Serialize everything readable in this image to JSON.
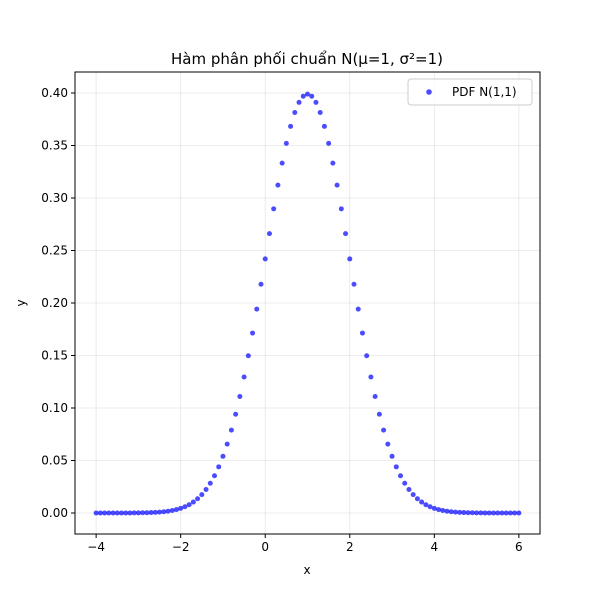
{
  "chart_data": {
    "type": "scatter",
    "title": "Hàm phân phối chuẩn N(μ=1, σ²=1)",
    "xlabel": "x",
    "ylabel": "y",
    "xlim": [
      -4.5,
      6.5
    ],
    "ylim": [
      -0.02,
      0.42
    ],
    "grid": true,
    "legend_position": "top-right",
    "x_ticks": [
      -4,
      -2,
      0,
      2,
      4,
      6
    ],
    "x_tick_labels": [
      "−4",
      "−2",
      "0",
      "2",
      "4",
      "6"
    ],
    "y_ticks": [
      0.0,
      0.05,
      0.1,
      0.15,
      0.2,
      0.25,
      0.3,
      0.35,
      0.4
    ],
    "y_tick_labels": [
      "0.00",
      "0.05",
      "0.10",
      "0.15",
      "0.20",
      "0.25",
      "0.30",
      "0.35",
      "0.40"
    ],
    "series": [
      {
        "name": "PDF N(1,1)",
        "color": "#0000ff",
        "x": [
          -4.0,
          -3.9,
          -3.8,
          -3.7,
          -3.6,
          -3.5,
          -3.4,
          -3.3,
          -3.2,
          -3.1,
          -3.0,
          -2.9,
          -2.8,
          -2.7,
          -2.6,
          -2.5,
          -2.4,
          -2.3,
          -2.2,
          -2.1,
          -2.0,
          -1.9,
          -1.8,
          -1.7,
          -1.6,
          -1.5,
          -1.4,
          -1.3,
          -1.2,
          -1.1,
          -1.0,
          -0.9,
          -0.8,
          -0.7,
          -0.6,
          -0.5,
          -0.4,
          -0.3,
          -0.2,
          -0.1,
          0.0,
          0.1,
          0.2,
          0.3,
          0.4,
          0.5,
          0.6,
          0.7,
          0.8,
          0.9,
          1.0,
          1.1,
          1.2,
          1.3,
          1.4,
          1.5,
          1.6,
          1.7,
          1.8,
          1.9,
          2.0,
          2.1,
          2.2,
          2.3,
          2.4,
          2.5,
          2.6,
          2.7,
          2.8,
          2.9,
          3.0,
          3.1,
          3.2,
          3.3,
          3.4,
          3.5,
          3.6,
          3.7,
          3.8,
          3.9,
          4.0,
          4.1,
          4.2,
          4.3,
          4.4,
          4.5,
          4.6,
          4.7,
          4.8,
          4.9,
          5.0,
          5.1,
          5.2,
          5.3,
          5.4,
          5.5,
          5.6,
          5.7,
          5.8,
          5.9,
          6.0
        ],
        "y": [
          1.5e-06,
          2.4e-06,
          3.9e-06,
          6.2e-06,
          9.7e-06,
          1.49e-05,
          2.29e-05,
          3.47e-05,
          5.2e-05,
          7.72e-05,
          0.0001338,
          0.0001987,
          0.0002919,
          0.0004247,
          0.0006119,
          0.0008727,
          0.0012322,
          0.0017226,
          0.0023841,
          0.0032668,
          0.0044318,
          0.0059525,
          0.0079155,
          0.0104209,
          0.013583,
          0.0175283,
          0.0223945,
          0.028327,
          0.0354746,
          0.0439836,
          0.053991,
          0.0656158,
          0.0789502,
          0.0940491,
          0.1109208,
          0.1295176,
          0.1497275,
          0.1713686,
          0.1941861,
          0.2178522,
          0.2419707,
          0.2660852,
          0.2896916,
          0.3122539,
          0.3332246,
          0.3520653,
          0.3682701,
          0.3813878,
          0.3910427,
          0.3969525,
          0.3989423,
          0.3969525,
          0.3910427,
          0.3813878,
          0.3682701,
          0.3520653,
          0.3332246,
          0.3122539,
          0.2896916,
          0.2660852,
          0.2419707,
          0.2178522,
          0.1941861,
          0.1713686,
          0.1497275,
          0.1295176,
          0.1109208,
          0.0940491,
          0.0789502,
          0.0656158,
          0.053991,
          0.0439836,
          0.0354746,
          0.028327,
          0.0223945,
          0.0175283,
          0.013583,
          0.0104209,
          0.0079155,
          0.0059525,
          0.0044318,
          0.0032668,
          0.0023841,
          0.0017226,
          0.0012322,
          0.0008727,
          0.0006119,
          0.0004247,
          0.0002919,
          0.0001987,
          0.0001338,
          8.92e-05,
          5.89e-05,
          3.85e-05,
          2.49e-05,
          1.6e-05,
          1.01e-05,
          6.4e-06,
          4e-06,
          2.4e-06,
          1.5e-06
        ]
      }
    ]
  }
}
